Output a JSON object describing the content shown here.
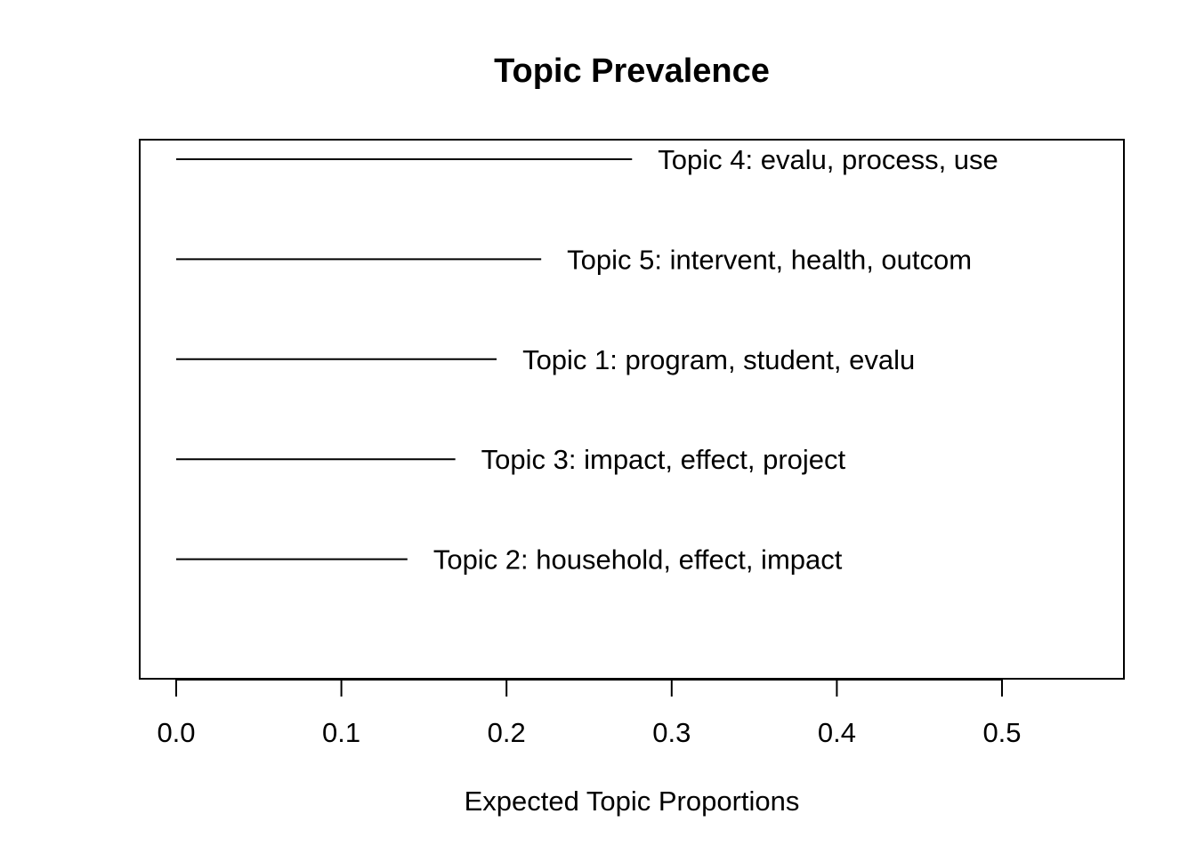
{
  "chart_data": {
    "type": "bar",
    "orientation": "horizontal",
    "title": "Topic Prevalence",
    "xlabel": "Expected Topic Proportions",
    "ylabel": "",
    "xlim": [
      0,
      0.57
    ],
    "xticks": [
      "0.0",
      "0.1",
      "0.2",
      "0.3",
      "0.4",
      "0.5"
    ],
    "xtick_values": [
      0.0,
      0.1,
      0.2,
      0.3,
      0.4,
      0.5
    ],
    "grid": false,
    "legend": "none",
    "color": "#000000",
    "items": [
      {
        "label": "Topic 4: evalu, process, use",
        "value": 0.276
      },
      {
        "label": "Topic 5: intervent, health, outcom",
        "value": 0.221
      },
      {
        "label": "Topic 1: program, student, evalu",
        "value": 0.194
      },
      {
        "label": "Topic 3: impact, effect, project",
        "value": 0.169
      },
      {
        "label": "Topic 2: household, effect, impact",
        "value": 0.14
      }
    ]
  }
}
